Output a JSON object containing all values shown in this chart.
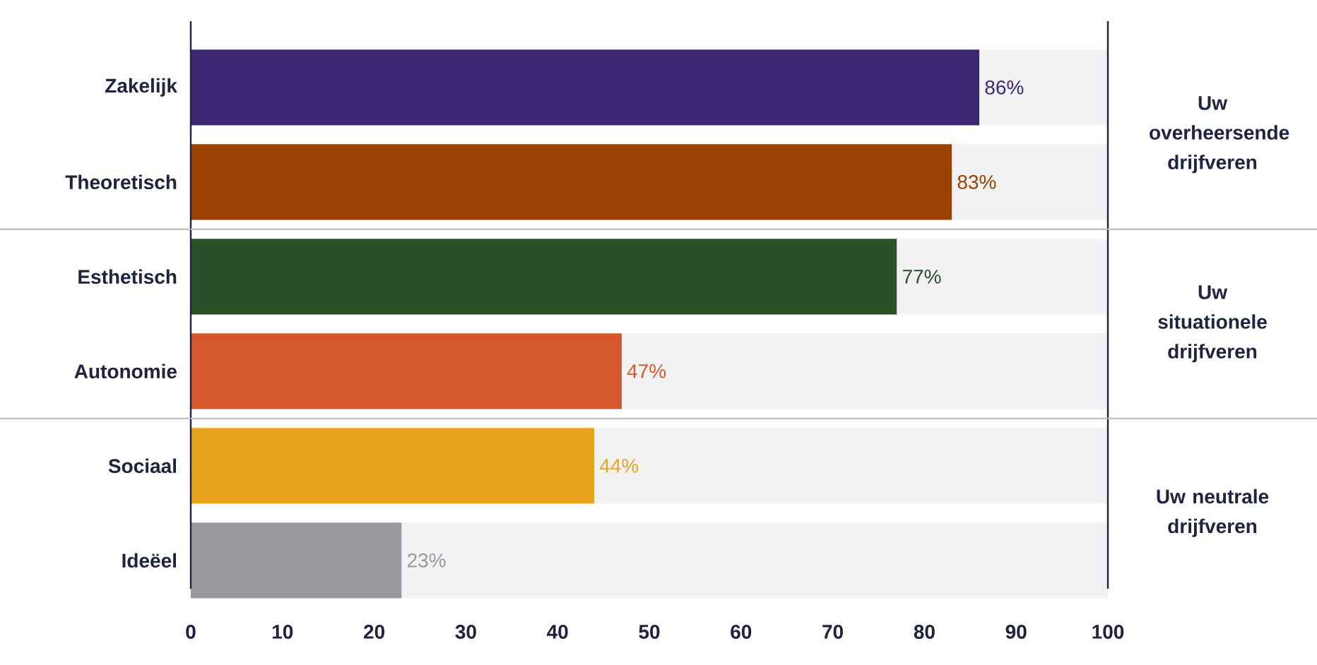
{
  "chart_data": {
    "type": "bar",
    "orientation": "horizontal",
    "categories": [
      "Zakelijk",
      "Theoretisch",
      "Esthetisch",
      "Autonomie",
      "Sociaal",
      "Ideëel"
    ],
    "xlim": [
      0,
      100
    ],
    "xticks": [
      0,
      10,
      20,
      30,
      40,
      50,
      60,
      70,
      80,
      90,
      100
    ],
    "series": [
      {
        "colors": [
          "#3f2873",
          "#9c4200",
          "#2b5129",
          "#d4582b",
          "#e8a41c",
          "#98999c"
        ],
        "values": [
          86,
          83,
          77,
          47,
          44,
          23
        ],
        "value_labels": [
          "86%",
          "83%",
          "77%",
          "47%",
          "44%",
          "23%"
        ]
      },
      {
        "color": "#f2f2f5",
        "values": [
          14,
          17,
          23,
          53,
          56,
          77
        ]
      }
    ],
    "stacked": true,
    "annotations": [
      "Uw overheersende drijfveren",
      "Uw situationele drijfveren",
      "Uw neutrale drijfveren"
    ]
  }
}
